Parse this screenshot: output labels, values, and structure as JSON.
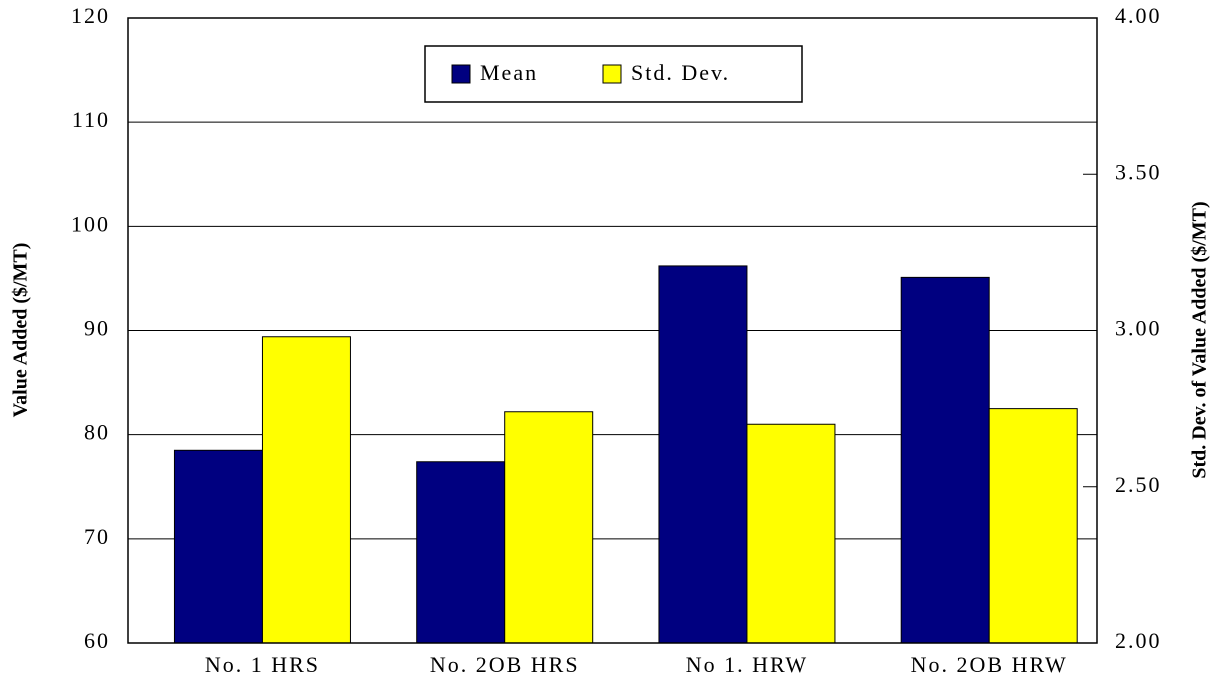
{
  "chart_data": {
    "type": "bar",
    "categories": [
      "No. 1 HRS",
      "No. 2OB HRS",
      "No 1. HRW",
      "No. 2OB HRW"
    ],
    "series": [
      {
        "name": "Mean",
        "color": "#000080",
        "values": [
          78.5,
          77.4,
          96.2,
          95.1
        ]
      },
      {
        "name": "Std. Dev.",
        "color": "#ffff00",
        "axis": "y2",
        "values": [
          2.98,
          2.74,
          2.7,
          2.75
        ]
      }
    ],
    "ylabel": "Value Added ($/MT)",
    "y2label": "Std. Dev. of Value Added ($/MT)",
    "ylim": [
      60,
      120
    ],
    "yticks": [
      60,
      70,
      80,
      90,
      100,
      110,
      120
    ],
    "y2lim": [
      2,
      4
    ],
    "y2ticks": [
      {
        "value": 2,
        "label": "2.00"
      },
      {
        "value": 2.5,
        "label": "2.50"
      },
      {
        "value": 3,
        "label": "3.00"
      },
      {
        "value": 3.5,
        "label": "3.50"
      },
      {
        "value": 4,
        "label": "4.00"
      }
    ],
    "grid": true,
    "legend": "top"
  }
}
